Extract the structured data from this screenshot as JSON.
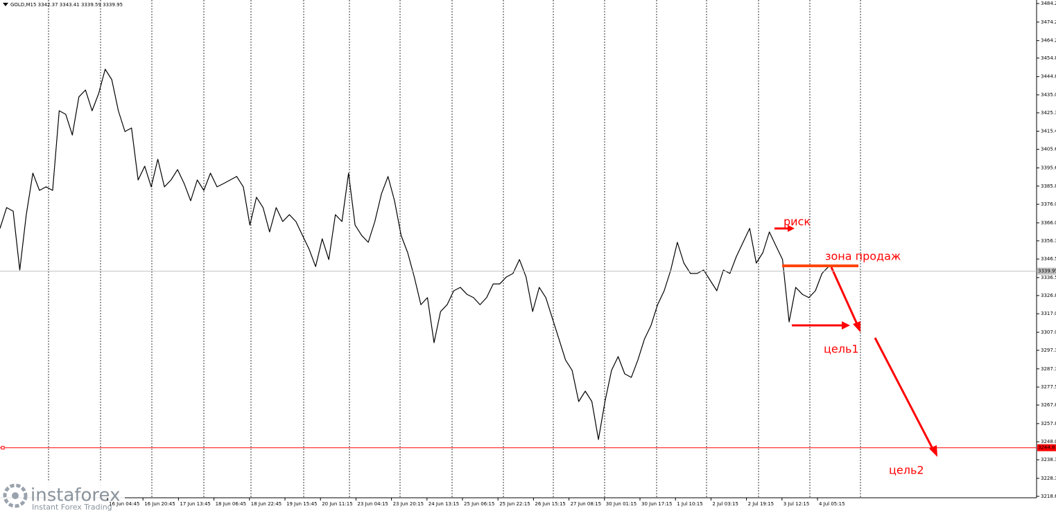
{
  "chart_data": {
    "type": "line",
    "title": "GOLD,M15  3342.37 3343.41 3339.59 3339.95",
    "series": [
      {
        "color": "#000000",
        "values": [
          3363.0,
          3374.2,
          3372.3,
          3340.6,
          3370.4,
          3392.8,
          3383.5,
          3385.4,
          3383.5,
          3426.4,
          3424.5,
          3413.3,
          3433.9,
          3437.6,
          3426.4,
          3435.7,
          3448.8,
          3443.2,
          3426.4,
          3415.2,
          3417.1,
          3389.1,
          3396.5,
          3385.4,
          3400.3,
          3385.4,
          3389.1,
          3394.7,
          3387.2,
          3377.9,
          3389.1,
          3383.5,
          3392.8,
          3385.4,
          3387.2,
          3389.1,
          3391.0,
          3385.4,
          3364.8,
          3379.8,
          3374.2,
          3361.1,
          3374.2,
          3366.7,
          3370.4,
          3366.7,
          3359.2,
          3351.8,
          3342.4,
          3357.4,
          3346.2,
          3370.4,
          3366.7,
          3392.8,
          3364.8,
          3359.2,
          3355.5,
          3366.7,
          3381.6,
          3391.0,
          3377.9,
          3359.2,
          3349.9,
          3336.8,
          3321.9,
          3325.7,
          3301.4,
          3318.2,
          3321.9,
          3329.4,
          3331.2,
          3327.5,
          3325.7,
          3321.9,
          3325.7,
          3333.1,
          3333.1,
          3336.8,
          3338.7,
          3346.2,
          3336.8,
          3318.2,
          3331.2,
          3325.7,
          3314.5,
          3303.3,
          3292.1,
          3286.5,
          3269.7,
          3275.3,
          3269.7,
          3249.2,
          3269.7,
          3286.5,
          3293.9,
          3284.6,
          3282.7,
          3292.1,
          3303.3,
          3310.7,
          3321.9,
          3329.4,
          3340.6,
          3355.5,
          3344.3,
          3338.7,
          3338.7,
          3340.6,
          3335.0,
          3329.4,
          3340.6,
          3338.7,
          3348.0,
          3355.5,
          3363.0,
          3344.3,
          3349.9,
          3361.1,
          3353.6,
          3346.2,
          3312.6,
          3331.2,
          3327.5,
          3325.7,
          3329.4,
          3338.7,
          3342.4
        ]
      }
    ],
    "ylim": [
      3218.2,
      3486.1
    ],
    "yticks": [
      3484.2,
      3474.2,
      3464.2,
      3454.8,
      3444.8,
      {
        "value": 3435,
        "label": "3435.0"
      },
      3425.3,
      3415.4,
      3405.6,
      3395.6,
      3385.8,
      {
        "value": 3376,
        "label": "3376.0"
      },
      {
        "value": 3366,
        "label": "3366.0"
      },
      3356.3,
      3346.5,
      3336.5,
      3326.8,
      {
        "value": 3317,
        "label": "3317.0"
      },
      {
        "value": 3307,
        "label": "3307.0"
      },
      3297.3,
      3287.3,
      3277.5,
      3267.8,
      3257.8,
      {
        "value": 3248,
        "label": "3248.0"
      },
      3238.3,
      3228.3,
      3218.6
    ],
    "x_labels": [
      "16 Jun 04:45",
      "16 Jun 20:45",
      "17 Jun 13:45",
      "18 Jun 06:45",
      "18 Jun 22:45",
      "19 Jun 15:45",
      "20 Jun 11:15",
      "23 Jun 04:15",
      "23 Jun 20:15",
      "24 Jun 13:15",
      "25 Jun 06:15",
      "25 Jun 22:15",
      "26 Jun 15:15",
      "27 Jun 08:15",
      "30 Jun 01:15",
      "30 Jun 17:15",
      "1 Jul 10:15",
      "2 Jul 03:15",
      "2 Jul 19:15",
      "3 Jul 12:15",
      "4 Jul 05:15"
    ],
    "hlines": [
      {
        "value": 3339.95,
        "color": "#c0c0c0",
        "label": "3339.95"
      },
      {
        "value": 3244.8,
        "color": "#ff0000",
        "label": "3244.8"
      }
    ],
    "annotations": [
      "риск",
      "зона продаж",
      "цель1",
      "цель2"
    ],
    "watermark": {
      "brand": "instaforex",
      "tagline": "Instant Forex Trading"
    }
  }
}
